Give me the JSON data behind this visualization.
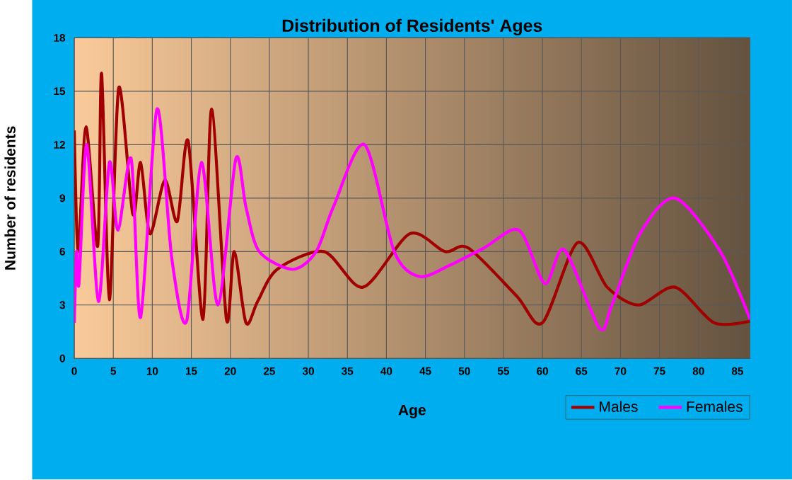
{
  "chart_data": {
    "type": "line",
    "title": "Distribution of Residents' Ages",
    "xlabel": "Age",
    "ylabel": "Number of residents",
    "xlim": [
      0,
      86.6
    ],
    "xticks": [
      0,
      5,
      10,
      15,
      20,
      25,
      30,
      35,
      40,
      45,
      50,
      55,
      60,
      65,
      70,
      75,
      80,
      85
    ],
    "ylim": [
      0,
      18
    ],
    "yticks": [
      0,
      3,
      6,
      9,
      12,
      15,
      18
    ],
    "grid": true,
    "legend": "bottom right",
    "series": [
      {
        "name": "Males",
        "color": "#a00000",
        "x": [
          0,
          0.5,
          1.5,
          3,
          3.5,
          4.5,
          5.7,
          7.5,
          8.5,
          9.7,
          11.6,
          13.2,
          14.6,
          16.5,
          17.6,
          19.5,
          20.5,
          22,
          23.5,
          26,
          32,
          37,
          43,
          47.5,
          50.5,
          56.7,
          60,
          64.5,
          68.3,
          72.3,
          77,
          82,
          86.6
        ],
        "values": [
          12.8,
          6,
          13,
          6.3,
          16,
          3.3,
          15.2,
          8.1,
          11,
          7,
          10,
          7.7,
          12.2,
          2.2,
          14,
          2.2,
          6,
          2,
          3.2,
          5,
          6,
          4,
          7,
          6,
          6.2,
          3.5,
          2,
          6.5,
          4,
          3,
          4,
          2,
          2.1
        ]
      },
      {
        "name": "Females",
        "color": "#ff00ff",
        "x": [
          0,
          0.3,
          0.6,
          1.6,
          3.1,
          4.5,
          5.6,
          7.3,
          8.5,
          10.6,
          12.5,
          14.4,
          16.3,
          18.4,
          20.7,
          22,
          23.7,
          28,
          31,
          33.2,
          37.2,
          41,
          44.2,
          48,
          52.5,
          57,
          60.3,
          62.8,
          67.3,
          68.9,
          72.5,
          77,
          82.8,
          86.6
        ],
        "values": [
          2,
          6,
          4.2,
          12,
          3.2,
          11,
          7.2,
          11.2,
          2.3,
          14,
          5.6,
          2.1,
          11,
          3,
          11.2,
          8.5,
          6,
          5,
          6,
          8.5,
          12,
          6,
          4.6,
          5.2,
          6.2,
          7.2,
          4.2,
          6.1,
          1.7,
          3,
          7,
          9,
          6,
          2.2
        ]
      }
    ]
  }
}
